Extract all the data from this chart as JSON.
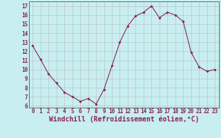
{
  "x": [
    0,
    1,
    2,
    3,
    4,
    5,
    6,
    7,
    8,
    9,
    10,
    11,
    12,
    13,
    14,
    15,
    16,
    17,
    18,
    19,
    20,
    21,
    22,
    23
  ],
  "y": [
    12.6,
    11.1,
    9.5,
    8.5,
    7.5,
    7.0,
    6.5,
    6.8,
    6.2,
    7.8,
    10.4,
    13.0,
    14.8,
    15.9,
    16.3,
    17.0,
    15.7,
    16.3,
    16.0,
    15.3,
    11.9,
    10.3,
    9.8,
    10.0
  ],
  "line_color": "#882255",
  "marker": "D",
  "marker_size": 1.8,
  "linewidth": 0.8,
  "xlabel": "Windchill (Refroidissement éolien,°C)",
  "xlim": [
    -0.5,
    23.5
  ],
  "ylim": [
    5.8,
    17.5
  ],
  "yticks": [
    6,
    7,
    8,
    9,
    10,
    11,
    12,
    13,
    14,
    15,
    16,
    17
  ],
  "xticks": [
    0,
    1,
    2,
    3,
    4,
    5,
    6,
    7,
    8,
    9,
    10,
    11,
    12,
    13,
    14,
    15,
    16,
    17,
    18,
    19,
    20,
    21,
    22,
    23
  ],
  "background_color": "#c8eef0",
  "grid_color": "#b0b0b0",
  "tick_label_fontsize": 5.5,
  "xlabel_fontsize": 7.0,
  "xlabel_color": "#882255"
}
